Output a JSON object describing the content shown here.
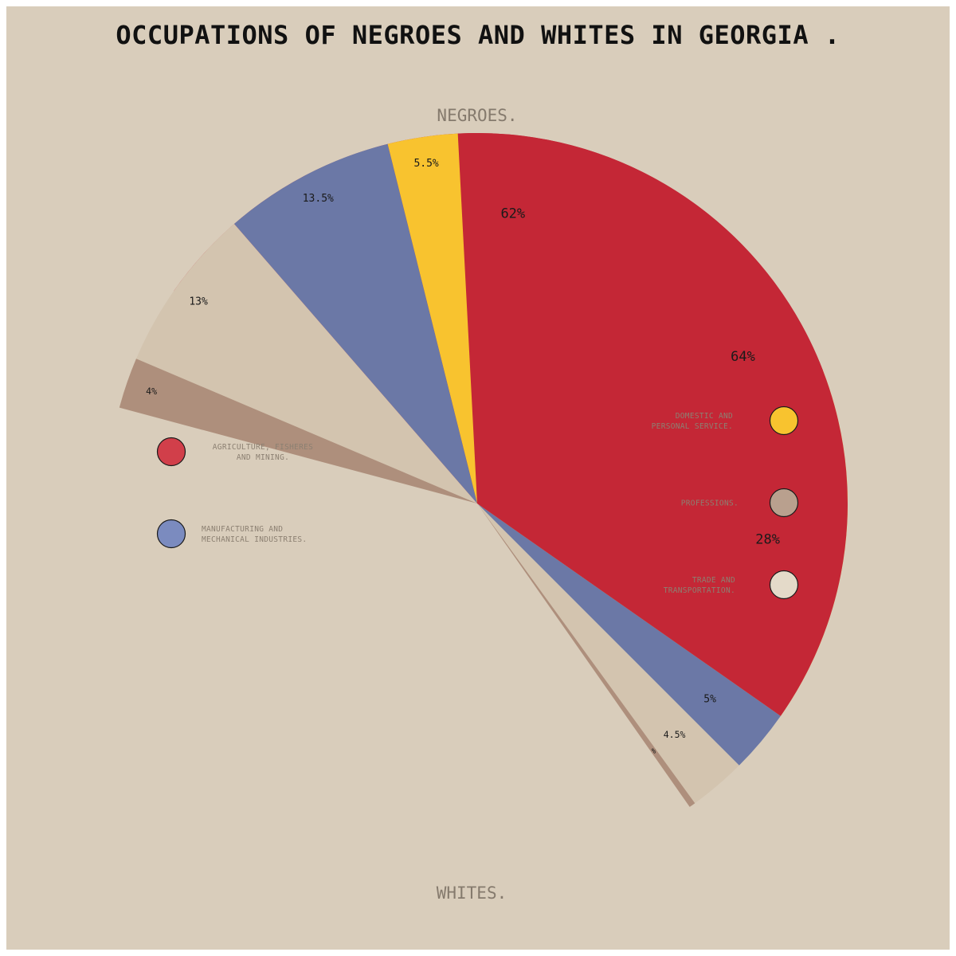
{
  "chart_data": {
    "type": "pie",
    "title": "OCCUPATIONS OF NEGROES AND WHITES IN GEORGIA .",
    "categories": [
      {
        "key": "agriculture",
        "label_lines": [
          "AGRICULTURE, FISHERES",
          "AND MINING."
        ],
        "color": "#c42736",
        "legend_color": "#d13f4a"
      },
      {
        "key": "domestic",
        "label_lines": [
          "DOMESTIC AND",
          "PERSONAL SERVICE."
        ],
        "color": "#f8c32f",
        "legend_color": "#f8c32f"
      },
      {
        "key": "manufacturing",
        "label_lines": [
          "MANUFACTURING AND",
          "MECHANICAL INDUSTRIES."
        ],
        "color": "#6b78a6",
        "legend_color": "#7b8bbf"
      },
      {
        "key": "professions",
        "label_lines": [
          "PROFESSIONS."
        ],
        "color": "#ae8f7c",
        "legend_color": "#b9a08e"
      },
      {
        "key": "trade",
        "label_lines": [
          "TRADE AND",
          "TRANSPORTATION."
        ],
        "color": "#d3c4af",
        "legend_color": "#e4dac9"
      }
    ],
    "series": [
      {
        "name": "NEGROES.",
        "values": {
          "agriculture": 62,
          "domestic": 28,
          "manufacturing": 5,
          "trade": 4.5,
          "professions": 0.5
        },
        "labels": {
          "agriculture": "62%",
          "domestic": "28%",
          "manufacturing": "5%",
          "trade": "4.5%",
          "professions": "%"
        }
      },
      {
        "name": "WHITES.",
        "values": {
          "agriculture": 64,
          "domestic": 5.5,
          "manufacturing": 13.5,
          "trade": 13,
          "professions": 4
        },
        "labels": {
          "agriculture": "64%",
          "domestic": "5.5%",
          "manufacturing": "13.5%",
          "trade": "13%",
          "professions": "4%"
        }
      }
    ]
  }
}
